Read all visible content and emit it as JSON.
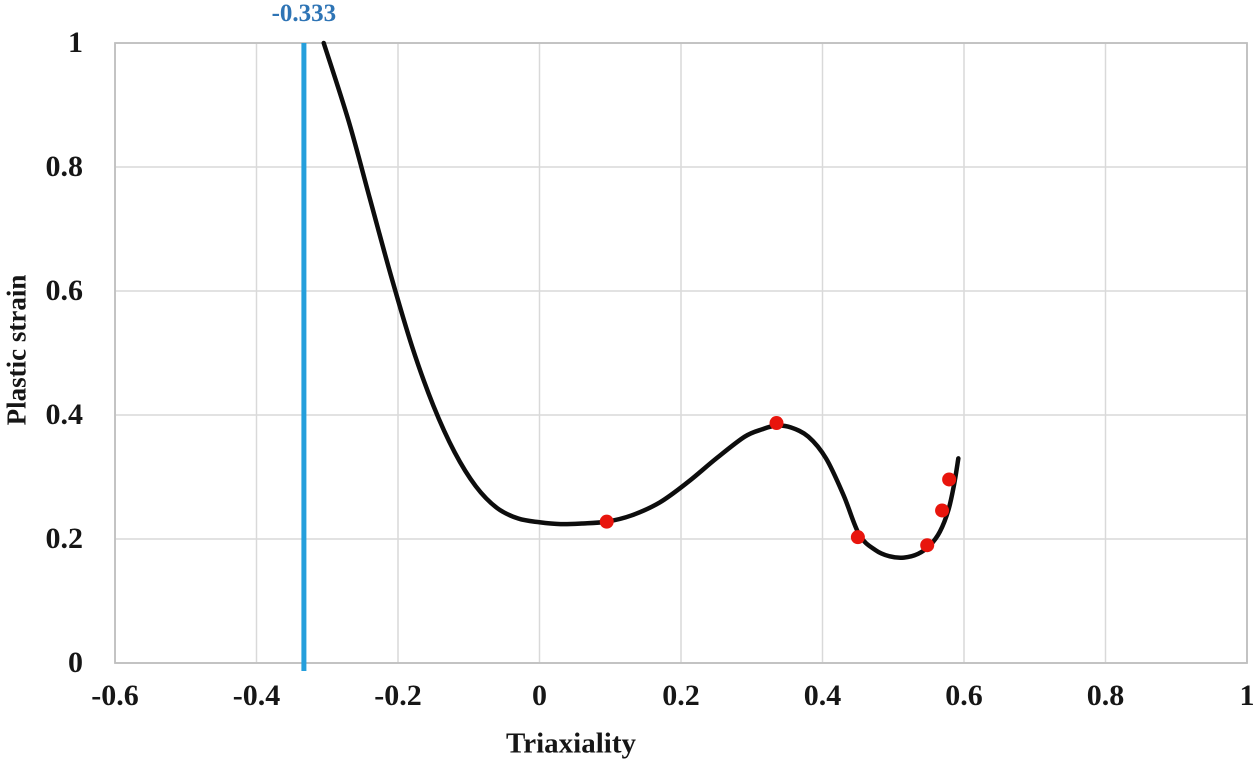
{
  "chart_data": {
    "type": "line",
    "title": "",
    "xlabel": "Triaxiality",
    "ylabel": "Plastic strain",
    "xlim": [
      -0.6,
      1
    ],
    "ylim": [
      0,
      1
    ],
    "x_ticks": [
      -0.6,
      -0.4,
      -0.2,
      0,
      0.2,
      0.4,
      0.6,
      0.8,
      1
    ],
    "x_tick_labels": [
      "-0.6",
      "-0.4",
      "-0.2",
      "0",
      "0.2",
      "0.4",
      "0.6",
      "0.8",
      "1"
    ],
    "y_ticks": [
      0,
      0.2,
      0.4,
      0.6,
      0.8,
      1
    ],
    "y_tick_labels": [
      "0",
      "0.2",
      "0.4",
      "0.6",
      "0.8",
      "1"
    ],
    "grid": true,
    "legend": "none",
    "annotation": {
      "label": "-0.333",
      "x": -0.333,
      "line_color": "#259FDC",
      "text_color": "#2E74B5"
    },
    "series": [
      {
        "name": "fracture-locus-curve",
        "type": "line",
        "color": "#0d0d0d",
        "stroke_width": 4.5,
        "points": [
          [
            -0.305,
            1.0
          ],
          [
            -0.27,
            0.875
          ],
          [
            -0.24,
            0.75
          ],
          [
            -0.21,
            0.625
          ],
          [
            -0.18,
            0.51
          ],
          [
            -0.15,
            0.415
          ],
          [
            -0.12,
            0.34
          ],
          [
            -0.09,
            0.285
          ],
          [
            -0.06,
            0.25
          ],
          [
            -0.03,
            0.233
          ],
          [
            0.0,
            0.227
          ],
          [
            0.03,
            0.224
          ],
          [
            0.06,
            0.225
          ],
          [
            0.095,
            0.228
          ],
          [
            0.13,
            0.238
          ],
          [
            0.17,
            0.259
          ],
          [
            0.21,
            0.292
          ],
          [
            0.25,
            0.33
          ],
          [
            0.29,
            0.365
          ],
          [
            0.315,
            0.377
          ],
          [
            0.335,
            0.383
          ],
          [
            0.355,
            0.38
          ],
          [
            0.38,
            0.365
          ],
          [
            0.405,
            0.33
          ],
          [
            0.43,
            0.27
          ],
          [
            0.452,
            0.207
          ],
          [
            0.475,
            0.182
          ],
          [
            0.495,
            0.172
          ],
          [
            0.515,
            0.17
          ],
          [
            0.535,
            0.176
          ],
          [
            0.552,
            0.19
          ],
          [
            0.566,
            0.212
          ],
          [
            0.578,
            0.247
          ],
          [
            0.586,
            0.288
          ],
          [
            0.592,
            0.33
          ]
        ]
      },
      {
        "name": "experimental-points",
        "type": "scatter",
        "color": "#E8150D",
        "radius": 7,
        "points": [
          [
            0.095,
            0.228
          ],
          [
            0.335,
            0.387
          ],
          [
            0.45,
            0.203
          ],
          [
            0.548,
            0.19
          ],
          [
            0.569,
            0.246
          ],
          [
            0.579,
            0.296
          ]
        ]
      }
    ],
    "colors": {
      "grid": "#D9D9D9",
      "plot_border": "#BFBFBF",
      "background": "#FFFFFF",
      "tick_text": "#161616"
    }
  }
}
